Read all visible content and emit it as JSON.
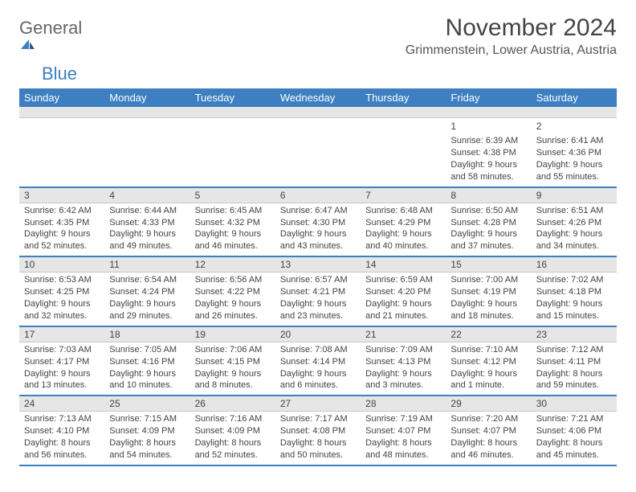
{
  "brand": {
    "word1": "General",
    "word2": "Blue"
  },
  "title": "November 2024",
  "location": "Grimmenstein, Lower Austria, Austria",
  "colors": {
    "header_bg": "#3d7fc1",
    "header_text": "#ffffff",
    "daynum_bg": "#e6e6e6",
    "border_blue": "#3d7fc1",
    "text": "#444444",
    "page_bg": "#ffffff"
  },
  "typography": {
    "title_fontsize": 30,
    "location_fontsize": 16,
    "weekday_fontsize": 13,
    "body_fontsize": 11
  },
  "weekdays": [
    "Sunday",
    "Monday",
    "Tuesday",
    "Wednesday",
    "Thursday",
    "Friday",
    "Saturday"
  ],
  "weeks": [
    [
      {
        "n": "",
        "sunrise": "",
        "sunset": "",
        "daylight": ""
      },
      {
        "n": "",
        "sunrise": "",
        "sunset": "",
        "daylight": ""
      },
      {
        "n": "",
        "sunrise": "",
        "sunset": "",
        "daylight": ""
      },
      {
        "n": "",
        "sunrise": "",
        "sunset": "",
        "daylight": ""
      },
      {
        "n": "",
        "sunrise": "",
        "sunset": "",
        "daylight": ""
      },
      {
        "n": "1",
        "sunrise": "Sunrise: 6:39 AM",
        "sunset": "Sunset: 4:38 PM",
        "daylight": "Daylight: 9 hours and 58 minutes."
      },
      {
        "n": "2",
        "sunrise": "Sunrise: 6:41 AM",
        "sunset": "Sunset: 4:36 PM",
        "daylight": "Daylight: 9 hours and 55 minutes."
      }
    ],
    [
      {
        "n": "3",
        "sunrise": "Sunrise: 6:42 AM",
        "sunset": "Sunset: 4:35 PM",
        "daylight": "Daylight: 9 hours and 52 minutes."
      },
      {
        "n": "4",
        "sunrise": "Sunrise: 6:44 AM",
        "sunset": "Sunset: 4:33 PM",
        "daylight": "Daylight: 9 hours and 49 minutes."
      },
      {
        "n": "5",
        "sunrise": "Sunrise: 6:45 AM",
        "sunset": "Sunset: 4:32 PM",
        "daylight": "Daylight: 9 hours and 46 minutes."
      },
      {
        "n": "6",
        "sunrise": "Sunrise: 6:47 AM",
        "sunset": "Sunset: 4:30 PM",
        "daylight": "Daylight: 9 hours and 43 minutes."
      },
      {
        "n": "7",
        "sunrise": "Sunrise: 6:48 AM",
        "sunset": "Sunset: 4:29 PM",
        "daylight": "Daylight: 9 hours and 40 minutes."
      },
      {
        "n": "8",
        "sunrise": "Sunrise: 6:50 AM",
        "sunset": "Sunset: 4:28 PM",
        "daylight": "Daylight: 9 hours and 37 minutes."
      },
      {
        "n": "9",
        "sunrise": "Sunrise: 6:51 AM",
        "sunset": "Sunset: 4:26 PM",
        "daylight": "Daylight: 9 hours and 34 minutes."
      }
    ],
    [
      {
        "n": "10",
        "sunrise": "Sunrise: 6:53 AM",
        "sunset": "Sunset: 4:25 PM",
        "daylight": "Daylight: 9 hours and 32 minutes."
      },
      {
        "n": "11",
        "sunrise": "Sunrise: 6:54 AM",
        "sunset": "Sunset: 4:24 PM",
        "daylight": "Daylight: 9 hours and 29 minutes."
      },
      {
        "n": "12",
        "sunrise": "Sunrise: 6:56 AM",
        "sunset": "Sunset: 4:22 PM",
        "daylight": "Daylight: 9 hours and 26 minutes."
      },
      {
        "n": "13",
        "sunrise": "Sunrise: 6:57 AM",
        "sunset": "Sunset: 4:21 PM",
        "daylight": "Daylight: 9 hours and 23 minutes."
      },
      {
        "n": "14",
        "sunrise": "Sunrise: 6:59 AM",
        "sunset": "Sunset: 4:20 PM",
        "daylight": "Daylight: 9 hours and 21 minutes."
      },
      {
        "n": "15",
        "sunrise": "Sunrise: 7:00 AM",
        "sunset": "Sunset: 4:19 PM",
        "daylight": "Daylight: 9 hours and 18 minutes."
      },
      {
        "n": "16",
        "sunrise": "Sunrise: 7:02 AM",
        "sunset": "Sunset: 4:18 PM",
        "daylight": "Daylight: 9 hours and 15 minutes."
      }
    ],
    [
      {
        "n": "17",
        "sunrise": "Sunrise: 7:03 AM",
        "sunset": "Sunset: 4:17 PM",
        "daylight": "Daylight: 9 hours and 13 minutes."
      },
      {
        "n": "18",
        "sunrise": "Sunrise: 7:05 AM",
        "sunset": "Sunset: 4:16 PM",
        "daylight": "Daylight: 9 hours and 10 minutes."
      },
      {
        "n": "19",
        "sunrise": "Sunrise: 7:06 AM",
        "sunset": "Sunset: 4:15 PM",
        "daylight": "Daylight: 9 hours and 8 minutes."
      },
      {
        "n": "20",
        "sunrise": "Sunrise: 7:08 AM",
        "sunset": "Sunset: 4:14 PM",
        "daylight": "Daylight: 9 hours and 6 minutes."
      },
      {
        "n": "21",
        "sunrise": "Sunrise: 7:09 AM",
        "sunset": "Sunset: 4:13 PM",
        "daylight": "Daylight: 9 hours and 3 minutes."
      },
      {
        "n": "22",
        "sunrise": "Sunrise: 7:10 AM",
        "sunset": "Sunset: 4:12 PM",
        "daylight": "Daylight: 9 hours and 1 minute."
      },
      {
        "n": "23",
        "sunrise": "Sunrise: 7:12 AM",
        "sunset": "Sunset: 4:11 PM",
        "daylight": "Daylight: 8 hours and 59 minutes."
      }
    ],
    [
      {
        "n": "24",
        "sunrise": "Sunrise: 7:13 AM",
        "sunset": "Sunset: 4:10 PM",
        "daylight": "Daylight: 8 hours and 56 minutes."
      },
      {
        "n": "25",
        "sunrise": "Sunrise: 7:15 AM",
        "sunset": "Sunset: 4:09 PM",
        "daylight": "Daylight: 8 hours and 54 minutes."
      },
      {
        "n": "26",
        "sunrise": "Sunrise: 7:16 AM",
        "sunset": "Sunset: 4:09 PM",
        "daylight": "Daylight: 8 hours and 52 minutes."
      },
      {
        "n": "27",
        "sunrise": "Sunrise: 7:17 AM",
        "sunset": "Sunset: 4:08 PM",
        "daylight": "Daylight: 8 hours and 50 minutes."
      },
      {
        "n": "28",
        "sunrise": "Sunrise: 7:19 AM",
        "sunset": "Sunset: 4:07 PM",
        "daylight": "Daylight: 8 hours and 48 minutes."
      },
      {
        "n": "29",
        "sunrise": "Sunrise: 7:20 AM",
        "sunset": "Sunset: 4:07 PM",
        "daylight": "Daylight: 8 hours and 46 minutes."
      },
      {
        "n": "30",
        "sunrise": "Sunrise: 7:21 AM",
        "sunset": "Sunset: 4:06 PM",
        "daylight": "Daylight: 8 hours and 45 minutes."
      }
    ]
  ]
}
